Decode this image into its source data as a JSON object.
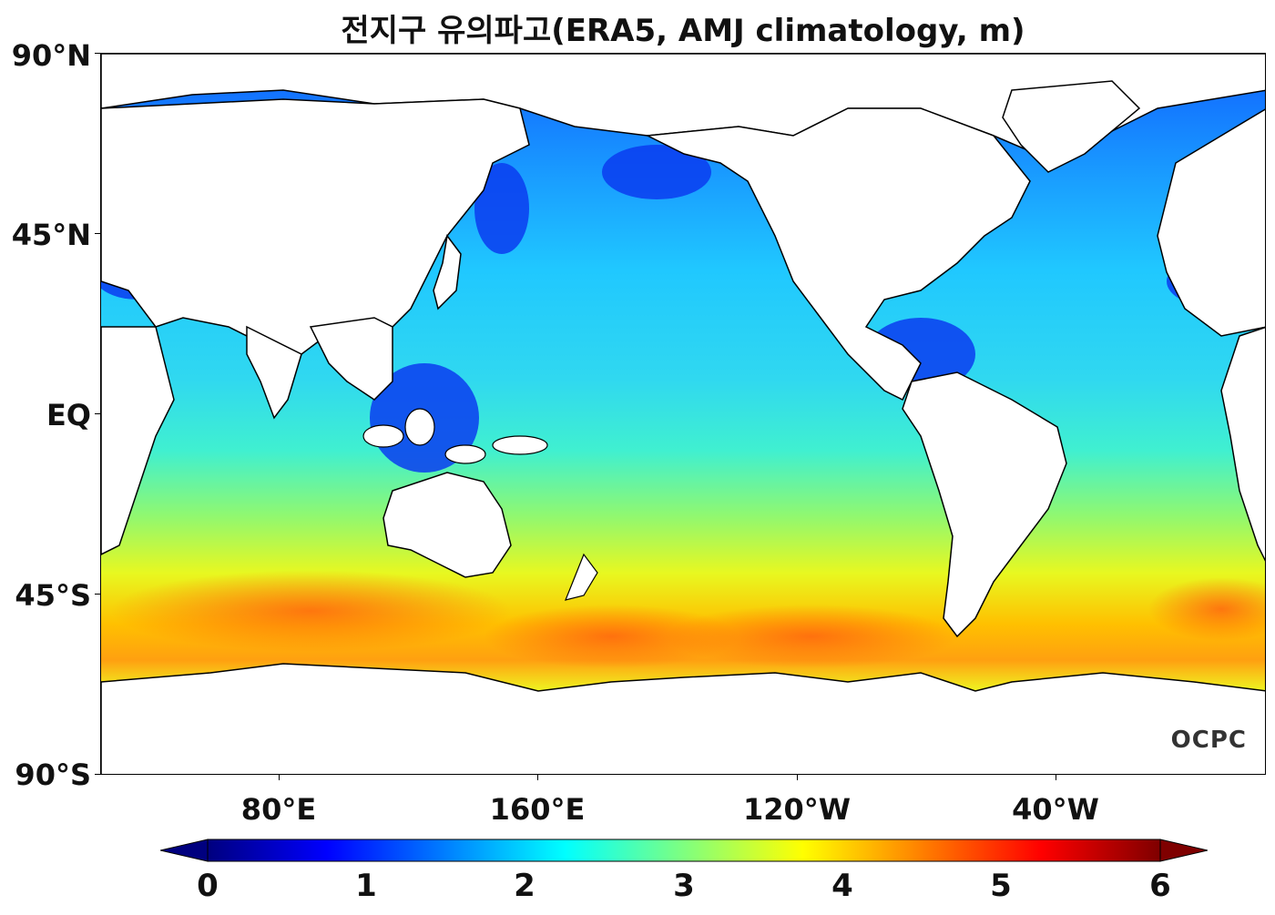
{
  "title": "전지구 유의파고(ERA5, AMJ climatology, m)",
  "axes": {
    "y_labels": [
      "90°N",
      "45°N",
      "EQ",
      "45°S",
      "90°S"
    ],
    "x_labels": [
      "80°E",
      "160°E",
      "120°W",
      "40°W"
    ]
  },
  "colorbar": {
    "labels": [
      "0",
      "1",
      "2",
      "3",
      "4",
      "5",
      "6"
    ],
    "range": [
      0,
      6
    ],
    "extend": "both",
    "colormap": "jet"
  },
  "watermark": "OCPC",
  "colors": {
    "land": "#ffffff",
    "coast": "#000000",
    "jet_stops": [
      "#00007f",
      "#0000ff",
      "#007fff",
      "#00ffff",
      "#7fff7f",
      "#ffff00",
      "#ff7f00",
      "#ff0000",
      "#7f0000"
    ]
  }
}
